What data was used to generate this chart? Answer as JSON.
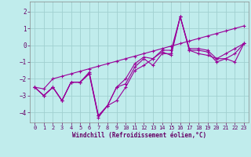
{
  "xlabel": "Windchill (Refroidissement éolien,°C)",
  "background_color": "#c0ecec",
  "grid_color": "#a0d0d0",
  "line_color": "#990099",
  "xlim": [
    -0.5,
    23.5
  ],
  "ylim": [
    -4.6,
    2.6
  ],
  "yticks": [
    -4,
    -3,
    -2,
    -1,
    0,
    1,
    2
  ],
  "xticks": [
    0,
    1,
    2,
    3,
    4,
    5,
    6,
    7,
    8,
    9,
    10,
    11,
    12,
    13,
    14,
    15,
    16,
    17,
    18,
    19,
    20,
    21,
    22,
    23
  ],
  "series": [
    [
      -2.5,
      -3.0,
      -2.5,
      -3.3,
      -2.2,
      -2.2,
      -1.6,
      -4.2,
      -3.6,
      -2.5,
      -2.3,
      -1.3,
      -0.8,
      -1.2,
      -0.5,
      -0.5,
      1.7,
      -0.3,
      -0.3,
      -0.4,
      -1.0,
      -0.8,
      -0.5,
      0.1
    ],
    [
      -2.5,
      -3.0,
      -2.5,
      -3.3,
      -2.2,
      -2.2,
      -1.7,
      -4.3,
      -3.6,
      -3.3,
      -2.5,
      -1.5,
      -1.2,
      -0.8,
      -0.4,
      -0.6,
      1.7,
      -0.3,
      -0.5,
      -0.6,
      -0.8,
      -0.8,
      -1.0,
      0.1
    ],
    [
      -2.5,
      -3.0,
      -2.5,
      -3.3,
      -2.2,
      -2.2,
      -1.7,
      -4.2,
      -3.6,
      -2.5,
      -2.0,
      -1.1,
      -0.7,
      -0.8,
      -0.3,
      -0.3,
      1.7,
      -0.2,
      -0.2,
      -0.3,
      -0.8,
      -0.5,
      -0.2,
      0.1
    ],
    [
      -2.5,
      -2.6,
      -2.0,
      -1.85,
      -1.7,
      -1.55,
      -1.4,
      -1.25,
      -1.1,
      -0.95,
      -0.8,
      -0.65,
      -0.5,
      -0.35,
      -0.2,
      -0.05,
      0.1,
      0.25,
      0.4,
      0.55,
      0.7,
      0.85,
      1.0,
      1.15
    ]
  ]
}
